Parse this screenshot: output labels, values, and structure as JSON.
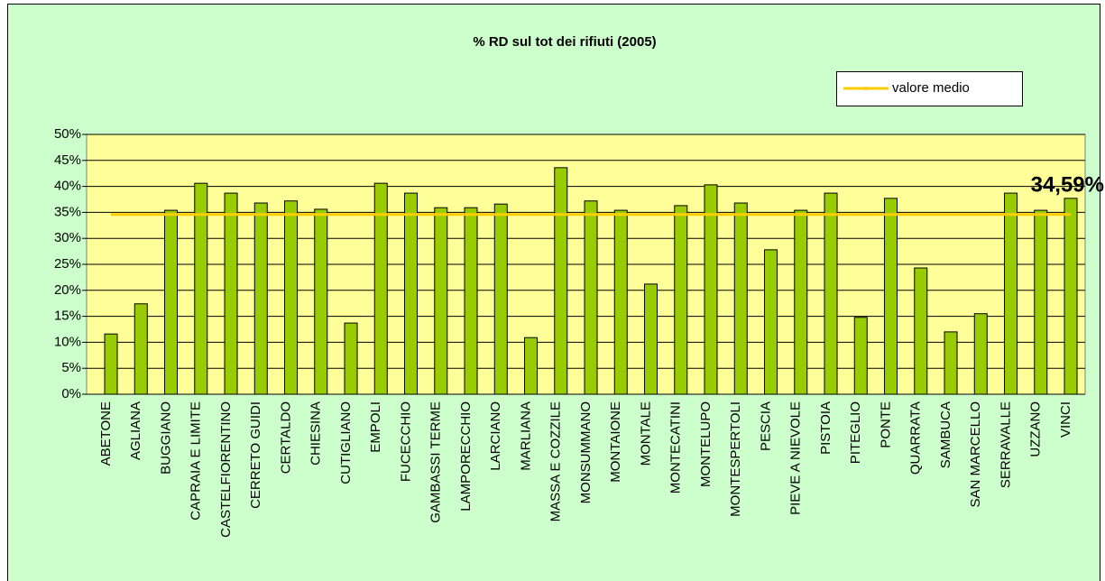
{
  "chart_data": {
    "type": "bar",
    "title": "% RD sul tot dei rifiuti (2005)",
    "categories": [
      "ABETONE",
      "AGLIANA",
      "BUGGIANO",
      "CAPRAIA E LIMITE",
      "CASTELFIORENTINO",
      "CERRETO GUIDI",
      "CERTALDO",
      "CHIESINA",
      "CUTIGLIANO",
      "EMPOLI",
      "FUCECCHIO",
      "GAMBASSI TERME",
      "LAMPORECCHIO",
      "LARCIANO",
      "MARLIANA",
      "MASSA E COZZILE",
      "MONSUMMANO",
      "MONTAIONE",
      "MONTALE",
      "MONTECATINI",
      "MONTELUPO",
      "MONTESPERTOLI",
      "PESCIA",
      "PIEVE A NIEVOLE",
      "PISTOIA",
      "PITEGLIO",
      "PONTE",
      "QUARRATA",
      "SAMBUCA",
      "SAN MARCELLO",
      "SERRAVALLE",
      "UZZANO",
      "VINCI"
    ],
    "values": [
      11.6,
      17.4,
      35.4,
      40.6,
      38.7,
      36.8,
      37.2,
      35.6,
      13.7,
      40.6,
      38.7,
      35.9,
      35.9,
      36.6,
      10.9,
      43.6,
      37.2,
      35.4,
      21.2,
      36.3,
      40.3,
      36.8,
      27.8,
      35.4,
      38.7,
      14.8,
      37.7,
      24.3,
      12.0,
      15.5,
      38.7,
      35.4,
      37.7
    ],
    "color": "#99cc00",
    "mean_line": {
      "name": "valore medio",
      "value": 34.59,
      "label": "34,59%",
      "color": "#ffcc00"
    },
    "ylim": [
      0,
      50
    ],
    "yticks": [
      {
        "value": 0,
        "label": "0%"
      },
      {
        "value": 5,
        "label": "5%"
      },
      {
        "value": 10,
        "label": "10%"
      },
      {
        "value": 15,
        "label": "15%"
      },
      {
        "value": 20,
        "label": "20%"
      },
      {
        "value": 25,
        "label": "25%"
      },
      {
        "value": 30,
        "label": "30%"
      },
      {
        "value": 35,
        "label": "35%"
      },
      {
        "value": 40,
        "label": "40%"
      },
      {
        "value": 45,
        "label": "45%"
      },
      {
        "value": 50,
        "label": "50%"
      }
    ],
    "grid": true
  }
}
